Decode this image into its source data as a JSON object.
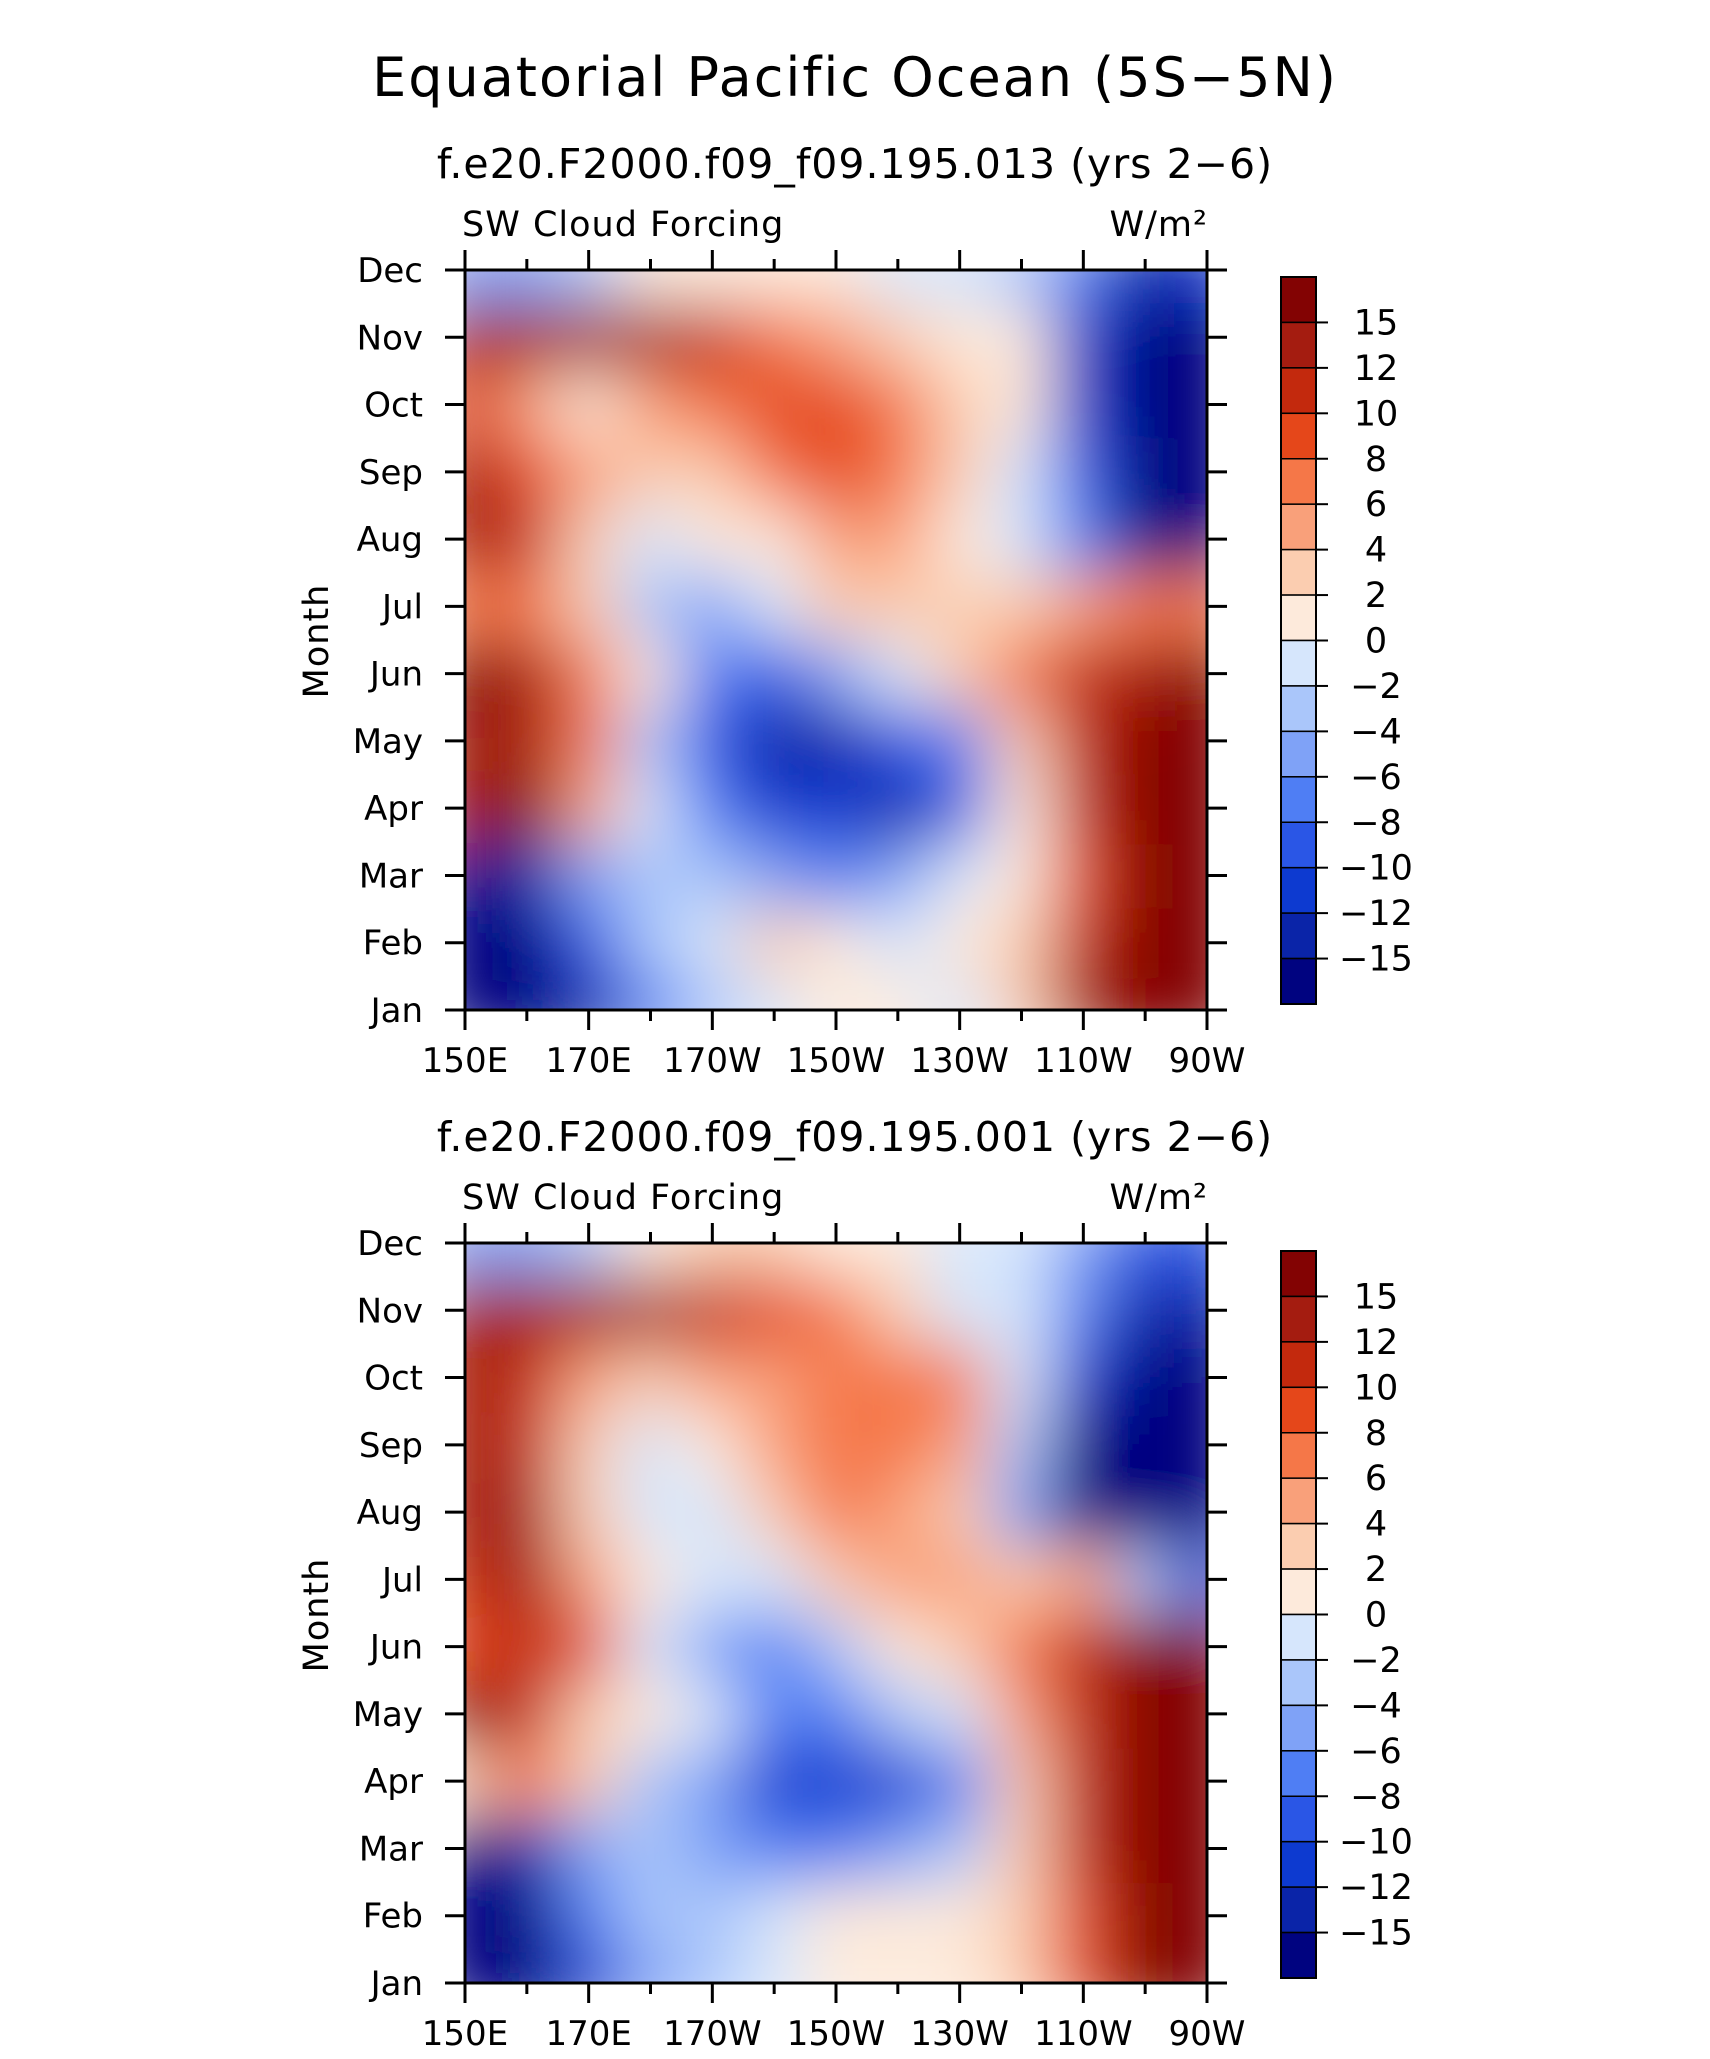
{
  "page_title": "Equatorial Pacific Ocean (5S−5N)",
  "chart_data": [
    {
      "type": "heatmap",
      "title": "f.e20.F2000.f09_f09.195.013 (yrs 2−6)",
      "left_label": "SW Cloud Forcing",
      "right_label": "W/m²",
      "ylabel": "Month",
      "xlabel": "",
      "x_ticks": [
        "150E",
        "170E",
        "170W",
        "150W",
        "130W",
        "110W",
        "90W"
      ],
      "y_ticks": [
        "Jan",
        "Feb",
        "Mar",
        "Apr",
        "May",
        "Jun",
        "Jul",
        "Aug",
        "Sep",
        "Oct",
        "Nov",
        "Dec"
      ],
      "x_lon_east": [
        150,
        160,
        170,
        180,
        190,
        200,
        210,
        220,
        230,
        240,
        250,
        260,
        270
      ],
      "z": [
        [
          -18,
          -18,
          -14,
          -8,
          -4,
          -2,
          1,
          1,
          -1,
          2,
          12,
          18,
          18
        ],
        [
          -18,
          -16,
          -10,
          -3,
          -1,
          2,
          0,
          -2,
          1,
          3,
          10,
          16,
          18
        ],
        [
          -18,
          -14,
          -6,
          -3,
          -4,
          -6,
          -8,
          -6,
          -2,
          1,
          8,
          16,
          18
        ],
        [
          14,
          16,
          4,
          -2,
          -8,
          -12,
          -12,
          -13,
          -10,
          1,
          10,
          17,
          18
        ],
        [
          14,
          12,
          6,
          -4,
          -10,
          -15,
          -13,
          -10,
          -7,
          3,
          10,
          17,
          18
        ],
        [
          15,
          14,
          7,
          0,
          -8,
          -10,
          -6,
          -2,
          3,
          7,
          10,
          14,
          16
        ],
        [
          6,
          6,
          3,
          -4,
          -6,
          -1,
          2,
          3,
          3,
          3,
          5,
          6,
          6
        ],
        [
          12,
          10,
          3,
          -2,
          0,
          1,
          5,
          4,
          1,
          -2,
          -8,
          -18,
          -18
        ],
        [
          12,
          8,
          5,
          2,
          3,
          7,
          8,
          7,
          2,
          -1,
          -10,
          -18,
          -18
        ],
        [
          8,
          5,
          1,
          4,
          6,
          8,
          8,
          6,
          2,
          0,
          -12,
          -18,
          -18
        ],
        [
          12,
          14,
          13,
          12,
          10,
          6,
          4,
          2,
          0,
          1,
          -12,
          -17,
          -16
        ],
        [
          -6,
          -6,
          -3,
          0,
          1,
          1,
          0,
          -1,
          -1,
          -3,
          -8,
          -14,
          -12
        ]
      ],
      "color_levels": [
        -15,
        -12,
        -10,
        -8,
        -6,
        -4,
        -2,
        0,
        2,
        4,
        6,
        8,
        10,
        12,
        15
      ],
      "colorbar_labels": [
        "15",
        "12",
        "10",
        "8",
        "6",
        "4",
        "2",
        "0",
        "−2",
        "−4",
        "−6",
        "−8",
        "−10",
        "−12",
        "−15"
      ]
    },
    {
      "type": "heatmap",
      "title": "f.e20.F2000.f09_f09.195.001 (yrs 2−6)",
      "left_label": "SW Cloud Forcing",
      "right_label": "W/m²",
      "ylabel": "Month",
      "xlabel": "",
      "x_ticks": [
        "150E",
        "170E",
        "170W",
        "150W",
        "130W",
        "110W",
        "90W"
      ],
      "y_ticks": [
        "Jan",
        "Feb",
        "Mar",
        "Apr",
        "May",
        "Jun",
        "Jul",
        "Aug",
        "Sep",
        "Oct",
        "Nov",
        "Dec"
      ],
      "x_lon_east": [
        150,
        160,
        170,
        180,
        190,
        200,
        210,
        220,
        230,
        240,
        250,
        260,
        270
      ],
      "z": [
        [
          -18,
          -18,
          -12,
          -6,
          -3,
          -1,
          0,
          1,
          1,
          2,
          8,
          15,
          18
        ],
        [
          -18,
          -17,
          -8,
          -4,
          -3,
          -1,
          1,
          1,
          1,
          3,
          9,
          16,
          18
        ],
        [
          -18,
          -15,
          -6,
          -4,
          -5,
          -8,
          -8,
          -6,
          -3,
          2,
          10,
          17,
          18
        ],
        [
          2,
          6,
          2,
          -3,
          -6,
          -11,
          -12,
          -11,
          -7,
          3,
          10,
          17,
          18
        ],
        [
          15,
          10,
          3,
          1,
          -2,
          -8,
          -7,
          -4,
          -1,
          5,
          11,
          17,
          18
        ],
        [
          9,
          11,
          9,
          -1,
          -6,
          -7,
          -3,
          1,
          3,
          6,
          11,
          16,
          16
        ],
        [
          11,
          12,
          5,
          0,
          -2,
          -1,
          2,
          5,
          4,
          2,
          5,
          -3,
          -12
        ],
        [
          12,
          12,
          2,
          -2,
          -1,
          3,
          6,
          5,
          3,
          -6,
          -16,
          -18,
          -18
        ],
        [
          12,
          11,
          3,
          -1,
          0,
          4,
          7,
          6,
          5,
          -4,
          -16,
          -18,
          -18
        ],
        [
          13,
          10,
          5,
          3,
          4,
          5,
          6,
          7,
          6,
          -2,
          -12,
          -18,
          -18
        ],
        [
          13,
          13,
          13,
          12,
          10,
          8,
          6,
          2,
          -1,
          -2,
          -8,
          -15,
          -14
        ],
        [
          -5,
          -5,
          -3,
          0,
          2,
          3,
          1,
          0,
          -1,
          -2,
          -6,
          -10,
          -10
        ]
      ],
      "color_levels": [
        -15,
        -12,
        -10,
        -8,
        -6,
        -4,
        -2,
        0,
        2,
        4,
        6,
        8,
        10,
        12,
        15
      ],
      "colorbar_labels": [
        "15",
        "12",
        "10",
        "8",
        "6",
        "4",
        "2",
        "0",
        "−2",
        "−4",
        "−6",
        "−8",
        "−10",
        "−12",
        "−15"
      ]
    }
  ],
  "colors": {
    "palette": [
      "#000380",
      "#0a24a8",
      "#0d3ad0",
      "#2a56e6",
      "#4f7ef4",
      "#7fa2f7",
      "#aac6fa",
      "#d6e6fc",
      "#fdeadb",
      "#fbcdb0",
      "#f9a07a",
      "#f57748",
      "#e5471a",
      "#c3290d",
      "#a41c10",
      "#830303"
    ]
  }
}
